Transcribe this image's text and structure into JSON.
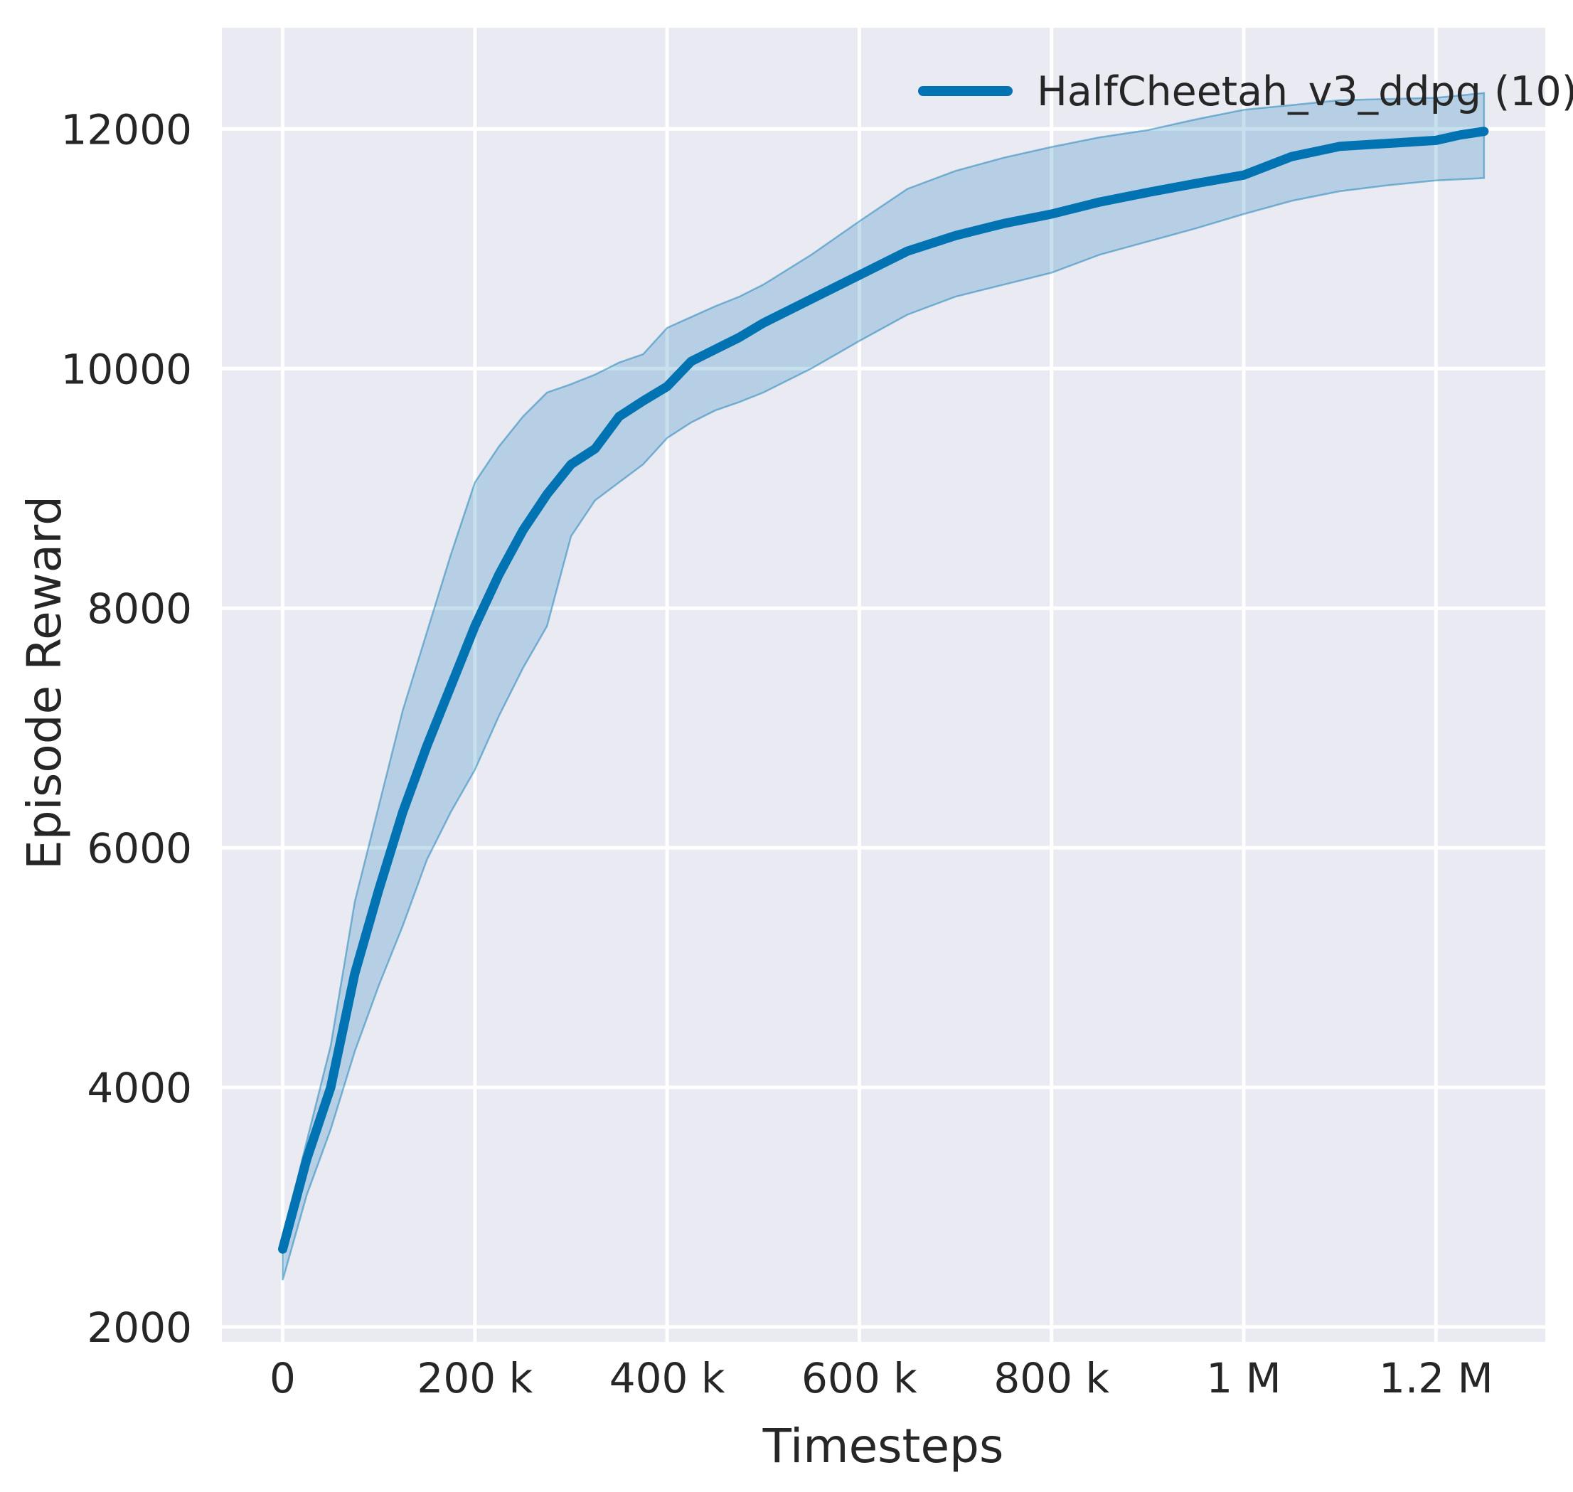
{
  "chart_data": {
    "type": "line",
    "title": "",
    "xlabel": "Timesteps",
    "ylabel": "Episode Reward",
    "grid": true,
    "legend_position": "upper right",
    "legend": [
      {
        "label": "HalfCheetah_v3_ddpg (10)",
        "color": "#0173b2"
      }
    ],
    "xlim": [
      -63300,
      1313700
    ],
    "ylim": [
      1875,
      12845
    ],
    "x_ticks": [
      {
        "value": 0,
        "label": "0"
      },
      {
        "value": 200000,
        "label": "200 k"
      },
      {
        "value": 400000,
        "label": "400 k"
      },
      {
        "value": 600000,
        "label": "600 k"
      },
      {
        "value": 800000,
        "label": "800 k"
      },
      {
        "value": 1000000,
        "label": "1 M"
      },
      {
        "value": 1200000,
        "label": "1.2 M"
      }
    ],
    "y_ticks": [
      {
        "value": 2000,
        "label": "2000"
      },
      {
        "value": 4000,
        "label": "4000"
      },
      {
        "value": 6000,
        "label": "6000"
      },
      {
        "value": 8000,
        "label": "8000"
      },
      {
        "value": 10000,
        "label": "10000"
      },
      {
        "value": 12000,
        "label": "12000"
      }
    ],
    "style": {
      "figure_bg": "#ffffff",
      "plot_bg": "#eaeaf2",
      "grid_color": "#ffffff",
      "text_color": "#262626",
      "line_color": "#0173b2",
      "band_fill": "rgba(1,115,178,0.22)",
      "band_edge": "rgba(1,115,178,0.45)"
    },
    "series": [
      {
        "name": "HalfCheetah_v3_ddpg (10)",
        "color": "#0173b2",
        "x": [
          0,
          25000,
          50000,
          75000,
          100000,
          125000,
          150000,
          175000,
          200000,
          225000,
          250000,
          275000,
          300000,
          325000,
          350000,
          375000,
          400000,
          425000,
          450000,
          475000,
          500000,
          550000,
          600000,
          650000,
          700000,
          750000,
          800000,
          850000,
          900000,
          950000,
          1000000,
          1050000,
          1100000,
          1150000,
          1200000,
          1225000,
          1250000
        ],
        "mean": [
          2650,
          3400,
          4000,
          4950,
          5650,
          6300,
          6850,
          7350,
          7850,
          8280,
          8650,
          8950,
          9200,
          9330,
          9600,
          9730,
          9850,
          10060,
          10160,
          10260,
          10380,
          10580,
          10780,
          10980,
          11110,
          11210,
          11290,
          11390,
          11470,
          11545,
          11615,
          11770,
          11855,
          11880,
          11905,
          11950,
          11980
        ],
        "lower": [
          2390,
          3100,
          3650,
          4300,
          4850,
          5350,
          5900,
          6300,
          6650,
          7100,
          7500,
          7850,
          8600,
          8900,
          9050,
          9200,
          9420,
          9550,
          9650,
          9720,
          9800,
          10000,
          10230,
          10450,
          10600,
          10700,
          10800,
          10950,
          11060,
          11170,
          11290,
          11400,
          11480,
          11530,
          11570,
          11580,
          11590
        ],
        "upper": [
          2730,
          3550,
          4350,
          5550,
          6350,
          7150,
          7800,
          8450,
          9050,
          9350,
          9600,
          9800,
          9870,
          9950,
          10050,
          10120,
          10340,
          10430,
          10520,
          10600,
          10700,
          10950,
          11230,
          11500,
          11650,
          11760,
          11850,
          11930,
          11990,
          12080,
          12160,
          12200,
          12240,
          12250,
          12260,
          12280,
          12300
        ]
      }
    ]
  }
}
